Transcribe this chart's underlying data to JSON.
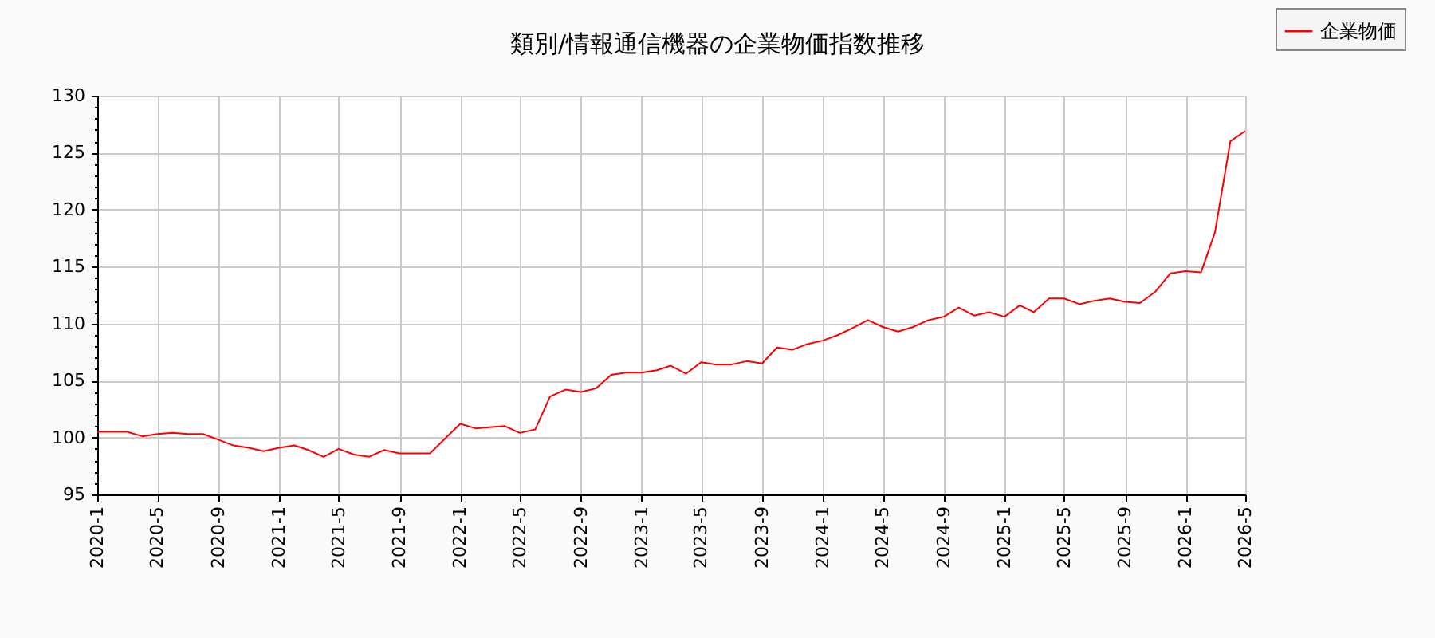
{
  "chart_data": {
    "type": "line",
    "title": "類別/情報通信機器の企業物価指数推移",
    "x": [
      "2020-01",
      "2020-02",
      "2020-03",
      "2020-04",
      "2020-05",
      "2020-06",
      "2020-07",
      "2020-08",
      "2020-09",
      "2020-10",
      "2020-11",
      "2020-12",
      "2021-01",
      "2021-02",
      "2021-03",
      "2021-04",
      "2021-05",
      "2021-06",
      "2021-07",
      "2021-08",
      "2021-09",
      "2021-10",
      "2021-11",
      "2022-01",
      "2022-02",
      "2022-03",
      "2022-04",
      "2022-05",
      "2022-06",
      "2022-07",
      "2022-08",
      "2022-09",
      "2022-10",
      "2022-11",
      "2022-12",
      "2023-01",
      "2023-02",
      "2023-03",
      "2023-04",
      "2023-05",
      "2023-06",
      "2023-07",
      "2023-08",
      "2023-09",
      "2023-10",
      "2023-11",
      "2023-12",
      "2024-01",
      "2024-02",
      "2024-03",
      "2024-04",
      "2024-05",
      "2024-06",
      "2024-07",
      "2024-08",
      "2024-09",
      "2024-10",
      "2024-11",
      "2024-12",
      "2025-01",
      "2025-02",
      "2025-03",
      "2025-04",
      "2025-05",
      "2025-06",
      "2025-07",
      "2025-08",
      "2025-09",
      "2025-10",
      "2025-11",
      "2025-12",
      "2026-01",
      "2026-02",
      "2026-03",
      "2026-04",
      "2026-05"
    ],
    "series": [
      {
        "name": "企業物価",
        "color": "#ff0000",
        "values": [
          100.5,
          100.5,
          100.5,
          100.1,
          100.3,
          100.4,
          100.3,
          100.3,
          99.8,
          99.3,
          99.1,
          98.8,
          99.1,
          99.3,
          98.9,
          98.3,
          99.0,
          98.5,
          98.3,
          98.9,
          98.6,
          98.6,
          98.6,
          101.2,
          100.8,
          100.9,
          101.0,
          100.4,
          100.7,
          103.6,
          104.2,
          104.0,
          104.3,
          105.5,
          105.7,
          105.7,
          105.9,
          106.3,
          105.6,
          106.6,
          106.4,
          106.4,
          106.7,
          106.5,
          107.9,
          107.7,
          108.2,
          108.5,
          109.0,
          109.6,
          110.3,
          109.7,
          109.3,
          109.7,
          110.3,
          110.6,
          111.4,
          110.7,
          111.0,
          110.6,
          111.6,
          111.0,
          112.2,
          112.2,
          111.7,
          112.0,
          112.2,
          111.9,
          111.8,
          112.8,
          114.4,
          114.6,
          114.5,
          118.0,
          126.0,
          126.9
        ]
      }
    ],
    "xlim": [
      "2020-01",
      "2026-05"
    ],
    "xticks": [
      {
        "value": "2020-01",
        "label": "2020-1"
      },
      {
        "value": "2020-05",
        "label": "2020-5"
      },
      {
        "value": "2020-09",
        "label": "2020-9"
      },
      {
        "value": "2021-01",
        "label": "2021-1"
      },
      {
        "value": "2021-05",
        "label": "2021-5"
      },
      {
        "value": "2021-09",
        "label": "2021-9"
      },
      {
        "value": "2022-01",
        "label": "2022-1"
      },
      {
        "value": "2022-05",
        "label": "2022-5"
      },
      {
        "value": "2022-09",
        "label": "2022-9"
      },
      {
        "value": "2023-01",
        "label": "2023-1"
      },
      {
        "value": "2023-05",
        "label": "2023-5"
      },
      {
        "value": "2023-09",
        "label": "2023-9"
      },
      {
        "value": "2024-01",
        "label": "2024-1"
      },
      {
        "value": "2024-05",
        "label": "2024-5"
      },
      {
        "value": "2024-09",
        "label": "2024-9"
      },
      {
        "value": "2025-01",
        "label": "2025-1"
      },
      {
        "value": "2025-05",
        "label": "2025-5"
      },
      {
        "value": "2025-09",
        "label": "2025-9"
      },
      {
        "value": "2026-01",
        "label": "2026-1"
      },
      {
        "value": "2026-05",
        "label": "2026-5"
      }
    ],
    "ylim": [
      95,
      130
    ],
    "yticks": [
      95,
      {
        "value": 96,
        "label": null
      },
      {
        "value": 97,
        "label": null
      },
      {
        "value": 98,
        "label": null
      },
      {
        "value": 99,
        "label": null
      },
      100,
      {
        "value": 101,
        "label": null
      },
      {
        "value": 102,
        "label": null
      },
      {
        "value": 103,
        "label": null
      },
      {
        "value": 104,
        "label": null
      },
      105,
      {
        "value": 106,
        "label": null
      },
      {
        "value": 107,
        "label": null
      },
      {
        "value": 108,
        "label": null
      },
      {
        "value": 109,
        "label": null
      },
      110,
      {
        "value": 111,
        "label": null
      },
      {
        "value": 112,
        "label": null
      },
      {
        "value": 113,
        "label": null
      },
      {
        "value": 114,
        "label": null
      },
      115,
      {
        "value": 116,
        "label": null
      },
      {
        "value": 117,
        "label": null
      },
      {
        "value": 118,
        "label": null
      },
      {
        "value": 119,
        "label": null
      },
      120,
      {
        "value": 121,
        "label": null
      },
      {
        "value": 122,
        "label": null
      },
      {
        "value": 123,
        "label": null
      },
      {
        "value": 124,
        "label": null
      },
      125,
      {
        "value": 126,
        "label": null
      },
      {
        "value": 127,
        "label": null
      },
      {
        "value": 128,
        "label": null
      },
      {
        "value": 129,
        "label": null
      },
      130
    ],
    "grid": true,
    "legend": "top right",
    "line_style": "solid"
  }
}
